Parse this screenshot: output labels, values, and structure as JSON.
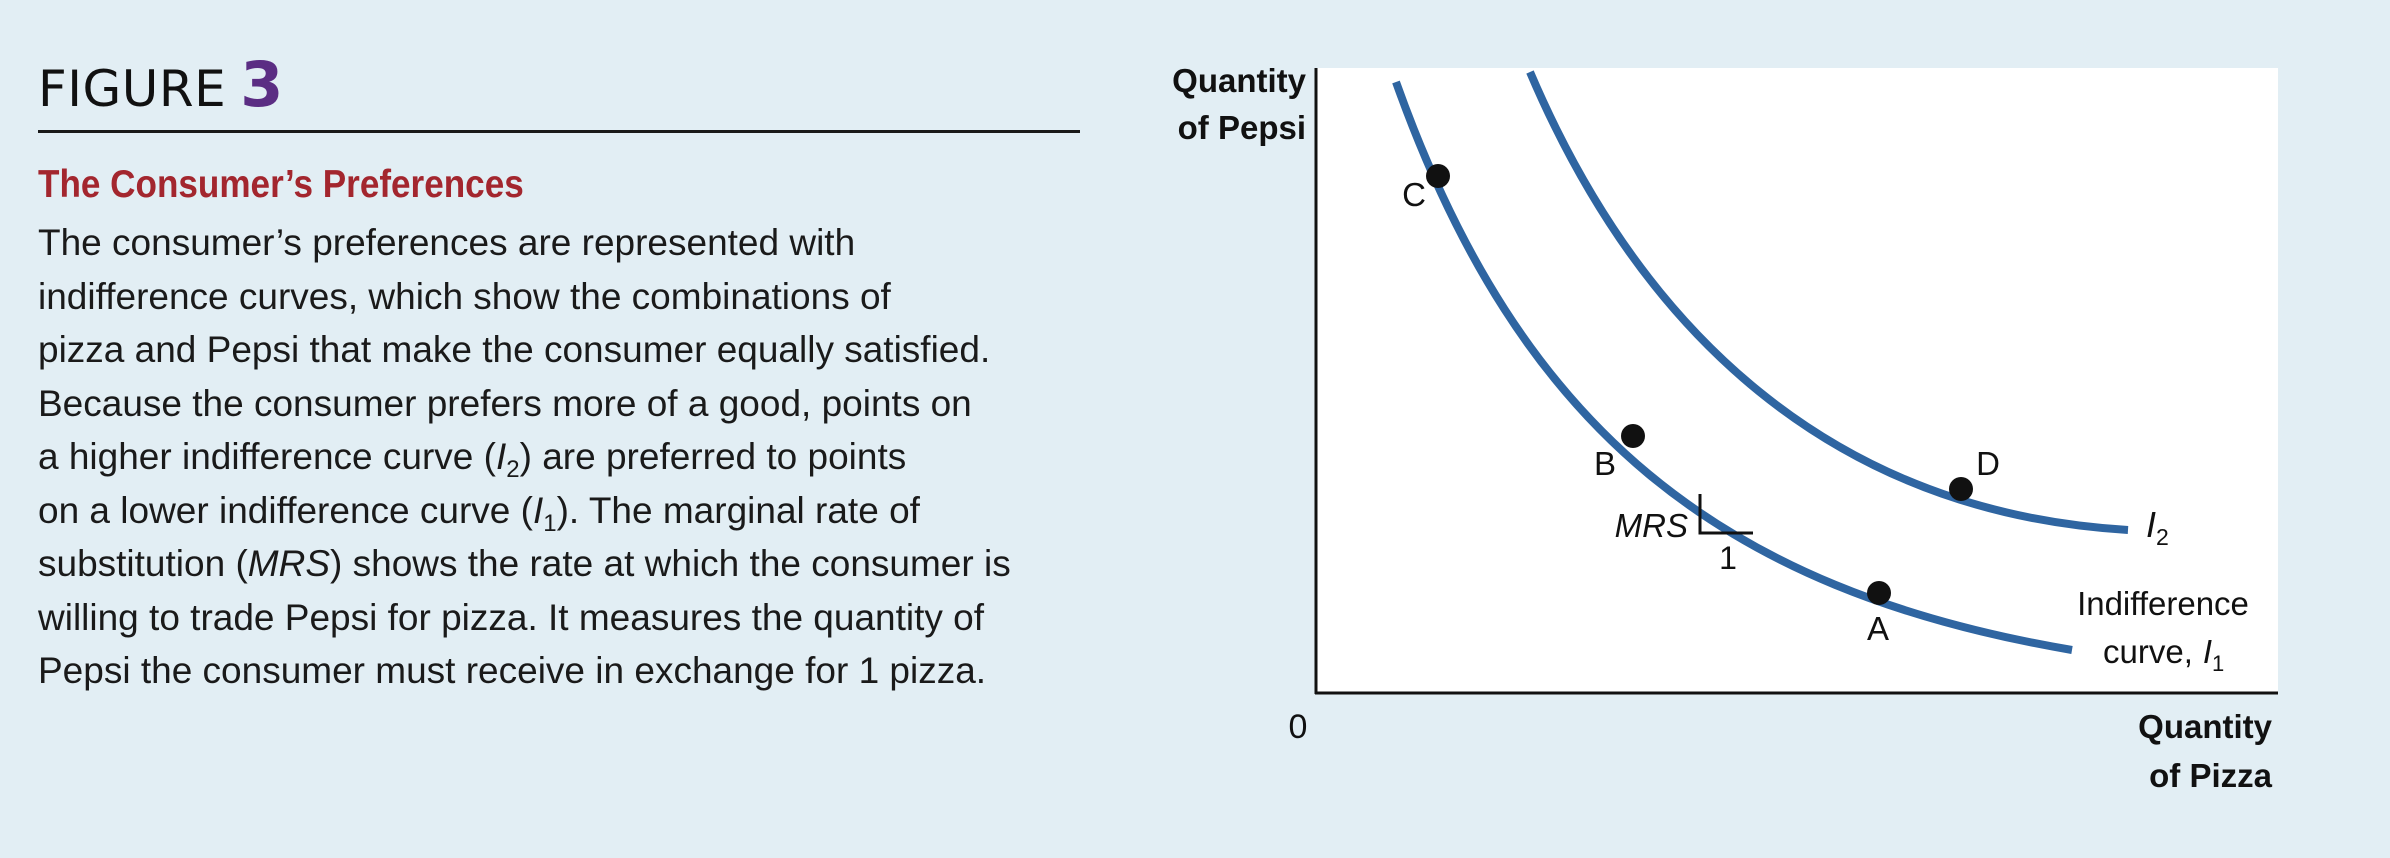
{
  "figure": {
    "word": "FIGURE",
    "number": "3"
  },
  "caption": {
    "title": "The Consumer’s Preferences",
    "lines": [
      [
        "The consumer’s preferences are represented with"
      ],
      [
        "indifference curves, which show the combinations of"
      ],
      [
        "pizza and Pepsi that make the consumer equally satisfied."
      ],
      [
        "Because the consumer prefers more of a good, points on"
      ],
      [
        "a higher indifference curve (",
        {
          "i": "I"
        },
        {
          "sub": "2"
        },
        ") are preferred to points"
      ],
      [
        "on a lower indifference curve (",
        {
          "i": "I"
        },
        {
          "sub": "1"
        },
        "). The marginal rate of"
      ],
      [
        "substitution (",
        {
          "i": "MRS"
        },
        ") shows the rate at which the consumer is"
      ],
      [
        "willing to trade Pepsi for pizza. It measures the quantity of"
      ],
      [
        "Pepsi the consumer must receive in exchange for 1 pizza."
      ]
    ]
  },
  "diagram": {
    "y_axis_label": [
      "Quantity",
      "of Pepsi"
    ],
    "x_axis_label": [
      "Quantity",
      "of Pizza"
    ],
    "origin": "0",
    "curve_i2_label": {
      "main": "I",
      "sub": "2"
    },
    "curve_i1_label": {
      "line1": "Indifference",
      "line2": "curve,",
      "main": "I",
      "sub": "1"
    },
    "points": {
      "A": "A",
      "B": "B",
      "C": "C",
      "D": "D"
    },
    "mrs_label": "MRS",
    "mrs_run": "1",
    "colors": {
      "curve": "#2f65a1",
      "title": "#a3262e",
      "figure_number": "#5b2d83"
    }
  }
}
